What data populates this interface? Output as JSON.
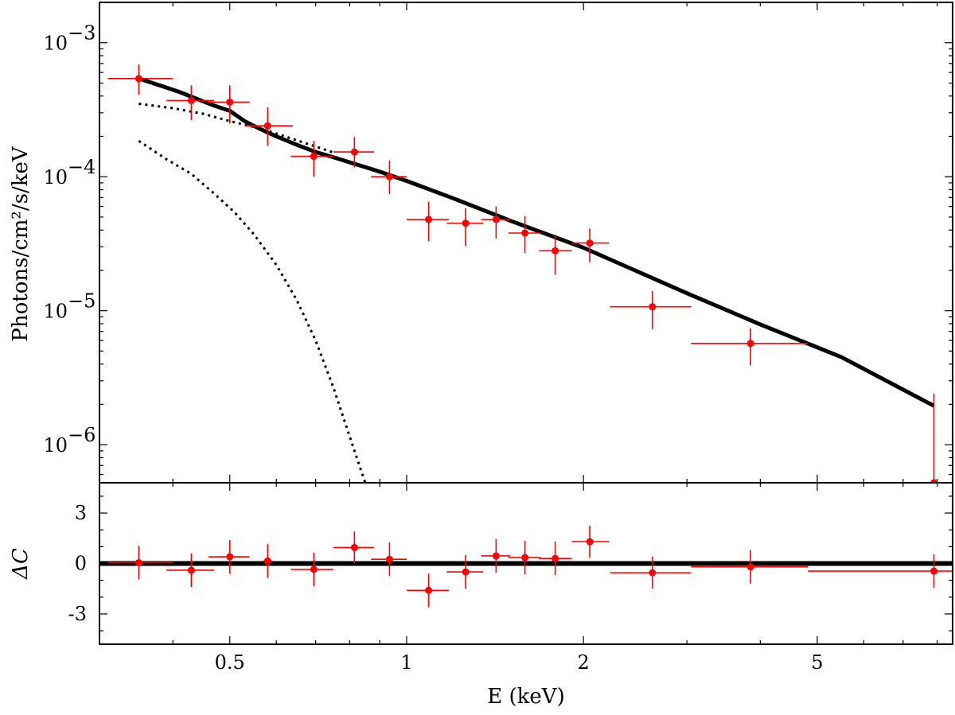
{
  "chart_data": {
    "type": "scatter",
    "xlabel": "E (keV)",
    "x_scale": "log",
    "xlim": [
      0.3,
      8.5
    ],
    "x_ticks": [
      0.5,
      1,
      2,
      5
    ],
    "x_tick_labels": [
      "0.5",
      "1",
      "2",
      "5"
    ],
    "colors": {
      "data": "#ff0000",
      "model": "#000000"
    },
    "panels": {
      "spectrum": {
        "ylabel": "Photons/cm²/s/keV",
        "y_scale": "log",
        "ylim": [
          5.2e-07,
          0.002
        ],
        "y_tick_labels": [
          {
            "value": 0.001,
            "mantissa": "10",
            "exponent": "−3"
          },
          {
            "value": 0.0001,
            "mantissa": "10",
            "exponent": "−4"
          },
          {
            "value": 1e-05,
            "mantissa": "10",
            "exponent": "−5"
          },
          {
            "value": 1e-06,
            "mantissa": "10",
            "exponent": "−6"
          }
        ],
        "data_points": [
          {
            "x": 0.35,
            "xlo": 0.31,
            "xhi": 0.4,
            "y": 0.00054,
            "ylo": 0.00041,
            "yhi": 0.00069
          },
          {
            "x": 0.43,
            "xlo": 0.39,
            "xhi": 0.47,
            "y": 0.00037,
            "ylo": 0.000265,
            "yhi": 0.00048
          },
          {
            "x": 0.5,
            "xlo": 0.46,
            "xhi": 0.54,
            "y": 0.00036,
            "ylo": 0.00025,
            "yhi": 0.00048
          },
          {
            "x": 0.58,
            "xlo": 0.53,
            "xhi": 0.64,
            "y": 0.00024,
            "ylo": 0.00017,
            "yhi": 0.00033
          },
          {
            "x": 0.695,
            "xlo": 0.635,
            "xhi": 0.75,
            "y": 0.000142,
            "ylo": 0.0001,
            "yhi": 0.000185
          },
          {
            "x": 0.815,
            "xlo": 0.75,
            "xhi": 0.88,
            "y": 0.000153,
            "ylo": 0.000117,
            "yhi": 0.000198
          },
          {
            "x": 0.935,
            "xlo": 0.87,
            "xhi": 1.0,
            "y": 0.0001,
            "ylo": 7.4e-05,
            "yhi": 0.000132
          },
          {
            "x": 1.09,
            "xlo": 1.0,
            "xhi": 1.18,
            "y": 4.8e-05,
            "ylo": 3.3e-05,
            "yhi": 6.5e-05
          },
          {
            "x": 1.26,
            "xlo": 1.17,
            "xhi": 1.35,
            "y": 4.5e-05,
            "ylo": 3.05e-05,
            "yhi": 5.8e-05
          },
          {
            "x": 1.42,
            "xlo": 1.34,
            "xhi": 1.5,
            "y": 4.8e-05,
            "ylo": 3.45e-05,
            "yhi": 6e-05
          },
          {
            "x": 1.59,
            "xlo": 1.49,
            "xhi": 1.69,
            "y": 3.8e-05,
            "ylo": 2.7e-05,
            "yhi": 5.1e-05
          },
          {
            "x": 1.79,
            "xlo": 1.68,
            "xhi": 1.91,
            "y": 2.8e-05,
            "ylo": 1.85e-05,
            "yhi": 3.7e-05
          },
          {
            "x": 2.05,
            "xlo": 1.91,
            "xhi": 2.21,
            "y": 3.2e-05,
            "ylo": 2.3e-05,
            "yhi": 4.1e-05
          },
          {
            "x": 2.62,
            "xlo": 2.22,
            "xhi": 3.05,
            "y": 1.07e-05,
            "ylo": 7.3e-06,
            "yhi": 1.4e-05
          },
          {
            "x": 3.85,
            "xlo": 3.05,
            "xhi": 4.82,
            "y": 5.7e-06,
            "ylo": 3.9e-06,
            "yhi": 7.4e-06
          },
          {
            "x": 7.9,
            "xlo": 4.82,
            "xhi": 8.5,
            "y": 5.2e-07,
            "ylo": 5.2e-07,
            "yhi": 2.4e-06
          }
        ],
        "model_total": {
          "x": [
            0.35,
            0.38,
            0.41,
            0.44,
            0.47,
            0.5,
            0.53,
            0.56,
            0.6,
            0.65,
            0.7,
            0.75,
            0.8,
            0.85,
            0.9,
            1.0,
            1.2,
            1.5,
            2.0,
            3.0,
            4.0,
            5.5,
            7.9
          ],
          "y": [
            0.00054,
            0.00048,
            0.00043,
            0.00038,
            0.00034,
            0.00031,
            0.00026,
            0.00023,
            0.0002,
            0.000173,
            0.000153,
            0.00014,
            0.000128,
            0.000118,
            0.000109,
            9.3e-05,
            6.9e-05,
            4.7e-05,
            2.95e-05,
            1.35e-05,
            7.9e-06,
            4.5e-06,
            1.95e-06
          ]
        },
        "model_component_1": {
          "x": [
            0.35,
            0.4,
            0.45,
            0.5,
            0.55,
            0.6,
            0.65,
            0.7,
            0.75
          ],
          "y": [
            0.00035,
            0.000325,
            0.000295,
            0.00026,
            0.000235,
            0.00021,
            0.000187,
            0.000168,
            0.000152
          ]
        },
        "model_component_2": {
          "x": [
            0.35,
            0.39,
            0.43,
            0.47,
            0.51,
            0.55,
            0.6,
            0.65,
            0.7,
            0.75,
            0.8,
            0.85
          ],
          "y": [
            0.000185,
            0.000135,
            0.000105,
            7.5e-05,
            5.4e-05,
            3.7e-05,
            2.2e-05,
            1.2e-05,
            6e-06,
            2.7e-06,
            1.15e-06,
            5.2e-07
          ]
        }
      },
      "residuals": {
        "ylabel": "ΔC",
        "y_scale": "linear",
        "ylim": [
          -4.8,
          4.8
        ],
        "y_ticks": [
          3,
          0,
          -3
        ],
        "y_tick_labels": [
          "3",
          "0",
          "-3"
        ],
        "zero_line": 0,
        "data_points": [
          {
            "x": 0.35,
            "xlo": 0.31,
            "xhi": 0.4,
            "y": 0.05,
            "ylo": -0.95,
            "yhi": 1.05
          },
          {
            "x": 0.43,
            "xlo": 0.39,
            "xhi": 0.47,
            "y": -0.4,
            "ylo": -1.4,
            "yhi": 0.6
          },
          {
            "x": 0.5,
            "xlo": 0.46,
            "xhi": 0.54,
            "y": 0.4,
            "ylo": -0.6,
            "yhi": 1.4
          },
          {
            "x": 0.58,
            "xlo": 0.57,
            "xhi": 0.59,
            "y": 0.15,
            "ylo": -0.85,
            "yhi": 1.15
          },
          {
            "x": 0.695,
            "xlo": 0.635,
            "xhi": 0.75,
            "y": -0.35,
            "ylo": -1.35,
            "yhi": 0.65
          },
          {
            "x": 0.815,
            "xlo": 0.75,
            "xhi": 0.88,
            "y": 0.95,
            "ylo": 0.0,
            "yhi": 1.9
          },
          {
            "x": 0.935,
            "xlo": 0.87,
            "xhi": 1.0,
            "y": 0.25,
            "ylo": -0.75,
            "yhi": 1.25
          },
          {
            "x": 1.09,
            "xlo": 1.0,
            "xhi": 1.18,
            "y": -1.6,
            "ylo": -2.6,
            "yhi": -0.6
          },
          {
            "x": 1.26,
            "xlo": 1.17,
            "xhi": 1.35,
            "y": -0.5,
            "ylo": -1.5,
            "yhi": 0.5
          },
          {
            "x": 1.42,
            "xlo": 1.34,
            "xhi": 1.5,
            "y": 0.45,
            "ylo": -0.55,
            "yhi": 1.45
          },
          {
            "x": 1.59,
            "xlo": 1.49,
            "xhi": 1.69,
            "y": 0.35,
            "ylo": -0.65,
            "yhi": 1.35
          },
          {
            "x": 1.79,
            "xlo": 1.68,
            "xhi": 1.91,
            "y": 0.3,
            "ylo": -0.7,
            "yhi": 1.3
          },
          {
            "x": 2.05,
            "xlo": 1.91,
            "xhi": 2.21,
            "y": 1.3,
            "ylo": 0.35,
            "yhi": 2.25
          },
          {
            "x": 2.62,
            "xlo": 2.22,
            "xhi": 3.05,
            "y": -0.55,
            "ylo": -1.5,
            "yhi": 0.4
          },
          {
            "x": 3.85,
            "xlo": 3.05,
            "xhi": 4.82,
            "y": -0.2,
            "ylo": -1.2,
            "yhi": 0.8
          },
          {
            "x": 7.9,
            "xlo": 4.82,
            "xhi": 8.5,
            "y": -0.45,
            "ylo": -1.45,
            "yhi": 0.55
          }
        ]
      }
    }
  }
}
